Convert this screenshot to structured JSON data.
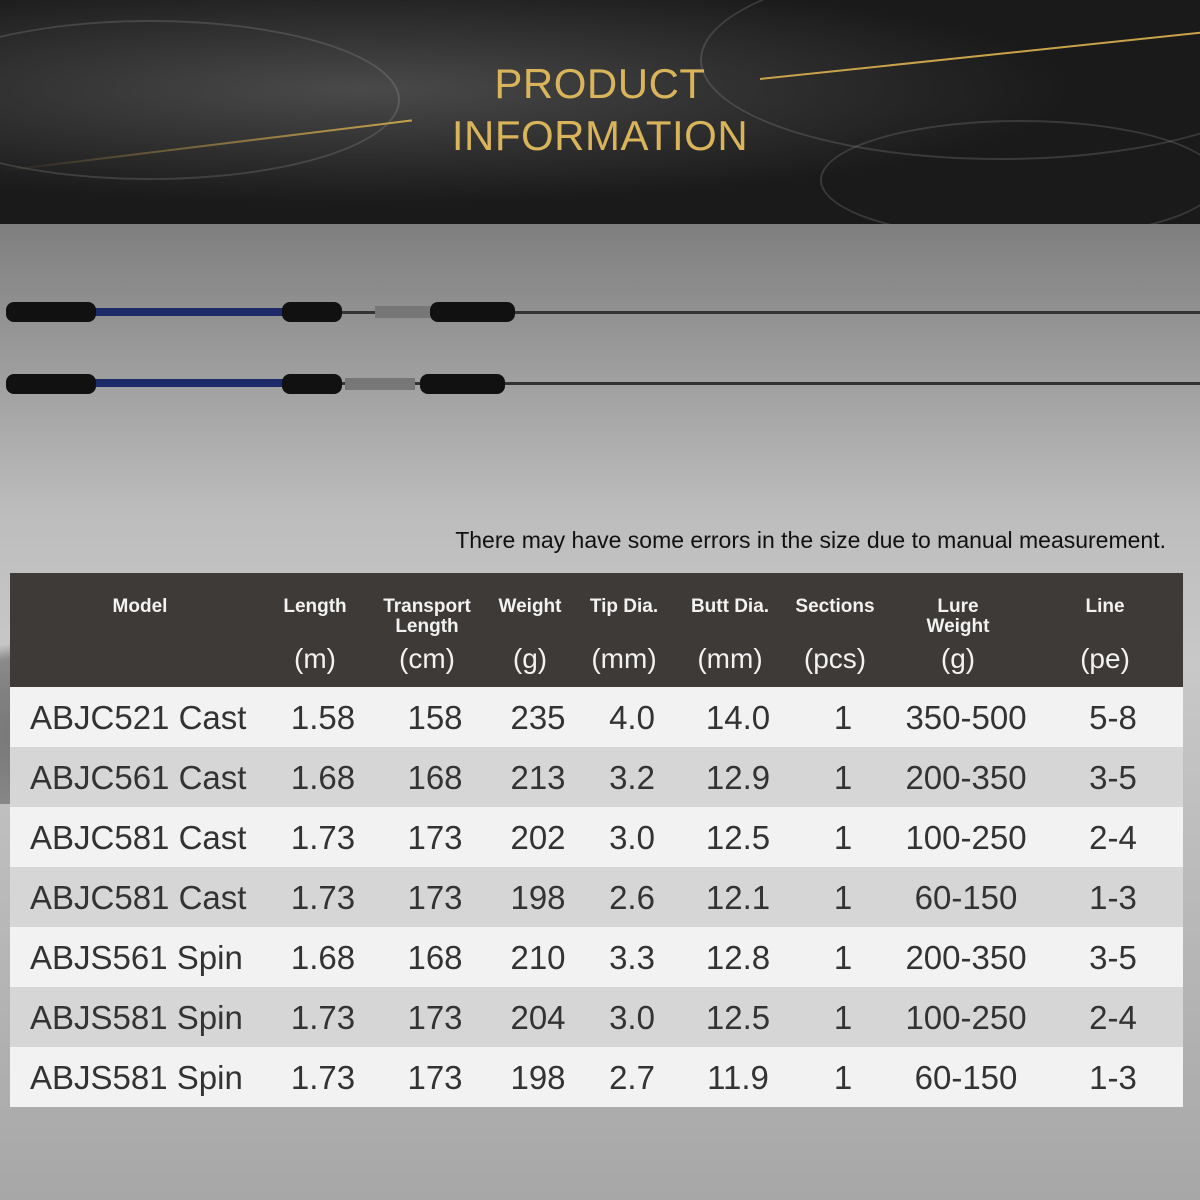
{
  "title_line1": "PRODUCT",
  "title_line2": "INFORMATION",
  "note": "There may have some errors in the size due to manual measurement.",
  "colors": {
    "gold": "#d9b45a",
    "header_bg": "#3e3a37"
  },
  "table": {
    "headers": [
      {
        "label": "Model",
        "unit": ""
      },
      {
        "label": "Length",
        "unit": "(m)"
      },
      {
        "label": "Transport Length",
        "unit": "(cm)"
      },
      {
        "label": "Weight",
        "unit": "(g)"
      },
      {
        "label": "Tip Dia.",
        "unit": "(mm)"
      },
      {
        "label": "Butt Dia.",
        "unit": "(mm)"
      },
      {
        "label": "Sections",
        "unit": "(pcs)"
      },
      {
        "label": "Lure Weight",
        "unit": "(g)"
      },
      {
        "label": "Line",
        "unit": "(pe)"
      }
    ],
    "rows": [
      [
        "ABJC521 Cast",
        "1.58",
        "158",
        "235",
        "4.0",
        "14.0",
        "1",
        "350-500",
        "5-8"
      ],
      [
        "ABJC561 Cast",
        "1.68",
        "168",
        "213",
        "3.2",
        "12.9",
        "1",
        "200-350",
        "3-5"
      ],
      [
        "ABJC581 Cast",
        "1.73",
        "173",
        "202",
        "3.0",
        "12.5",
        "1",
        "100-250",
        "2-4"
      ],
      [
        "ABJC581 Cast",
        "1.73",
        "173",
        "198",
        "2.6",
        "12.1",
        "1",
        "60-150",
        "1-3"
      ],
      [
        "ABJS561 Spin",
        "1.68",
        "168",
        "210",
        "3.3",
        "12.8",
        "1",
        "200-350",
        "3-5"
      ],
      [
        "ABJS581 Spin",
        "1.73",
        "173",
        "204",
        "3.0",
        "12.5",
        "1",
        "100-250",
        "2-4"
      ],
      [
        "ABJS581 Spin",
        "1.73",
        "173",
        "198",
        "2.7",
        "11.9",
        "1",
        "60-150",
        "1-3"
      ]
    ]
  }
}
